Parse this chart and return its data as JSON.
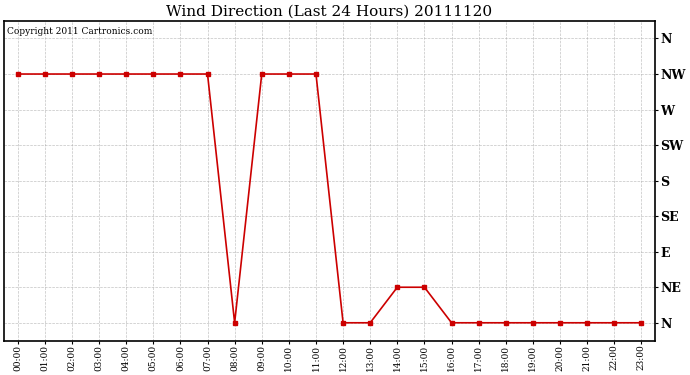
{
  "title": "Wind Direction (Last 24 Hours) 20111120",
  "copyright": "Copyright 2011 Cartronics.com",
  "line_color": "#cc0000",
  "bg_color": "#ffffff",
  "grid_color": "#aaaaaa",
  "marker": "s",
  "marker_size": 3,
  "x_hours": [
    0,
    1,
    2,
    3,
    4,
    5,
    6,
    7,
    8,
    9,
    10,
    11,
    12,
    13,
    14,
    15,
    16,
    17,
    18,
    19,
    20,
    21,
    22,
    23
  ],
  "y_values": [
    7,
    7,
    7,
    7,
    7,
    7,
    7,
    7,
    0,
    7,
    7,
    7,
    0,
    0,
    1,
    1,
    0,
    0,
    0,
    0,
    0,
    0,
    0,
    0
  ],
  "ytick_labels": [
    "N",
    "NE",
    "E",
    "SE",
    "S",
    "SW",
    "W",
    "NW",
    "N"
  ],
  "ytick_values": [
    0,
    1,
    2,
    3,
    4,
    5,
    6,
    7,
    8
  ],
  "ylim": [
    -0.5,
    8.5
  ],
  "xlim": [
    -0.5,
    23.5
  ],
  "figwidth": 6.9,
  "figheight": 3.75,
  "dpi": 100
}
